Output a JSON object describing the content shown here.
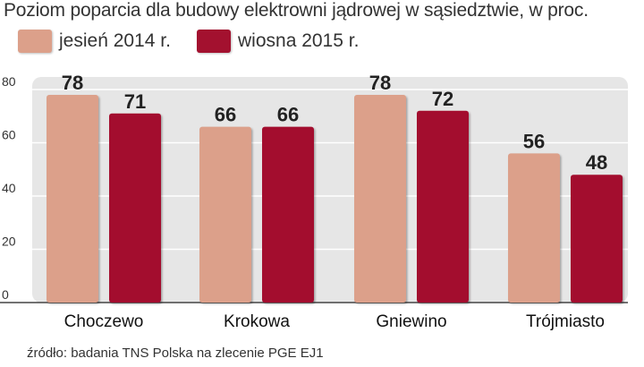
{
  "title": "Poziom poparcia dla budowy elektrowni jądrowej w sąsiedztwie, w proc.",
  "source": "źródło: badania TNS Polska na zlecenie PGE EJ1",
  "colors": {
    "series1": "#dca08a",
    "series2": "#a3112f",
    "panel": "#e6e6e6",
    "grid": "#ffffff"
  },
  "chart_data": {
    "type": "bar",
    "title": "Poziom poparcia dla budowy elektrowni jądrowej w sąsiedztwie, w proc.",
    "categories": [
      "Choczewo",
      "Krokowa",
      "Gniewino",
      "Trójmiasto"
    ],
    "series": [
      {
        "name": "jesień 2014 r.",
        "values": [
          78,
          66,
          78,
          56
        ]
      },
      {
        "name": "wiosna 2015 r.",
        "values": [
          71,
          66,
          72,
          48
        ]
      }
    ],
    "ylim": [
      0,
      80
    ],
    "yticks": [
      0,
      20,
      40,
      60,
      80
    ],
    "grid": true,
    "legend": "top-left"
  }
}
